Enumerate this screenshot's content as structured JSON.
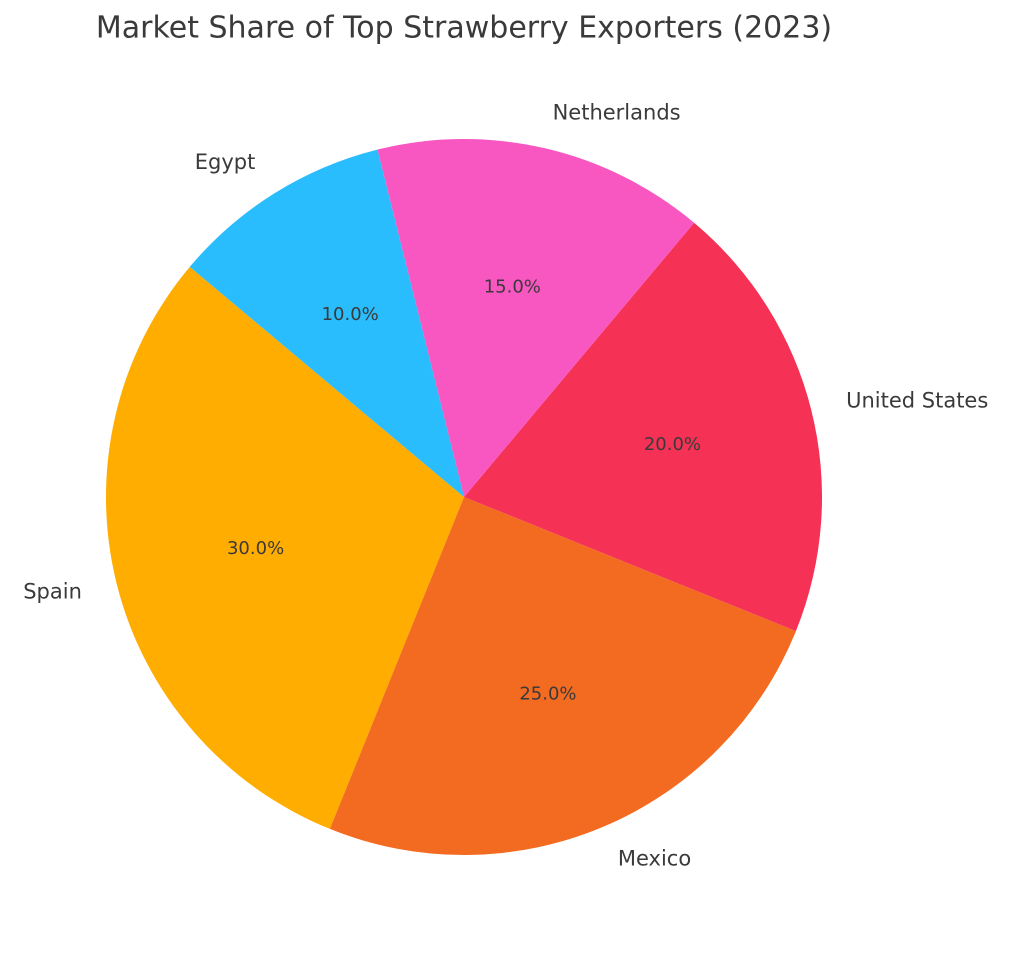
{
  "chart_data": {
    "type": "pie",
    "title": "Market Share of Top Strawberry Exporters (2023)",
    "categories": [
      "Spain",
      "Mexico",
      "United States",
      "Netherlands",
      "Egypt"
    ],
    "values": [
      30,
      25,
      20,
      15,
      10
    ],
    "value_labels": [
      "30.0%",
      "25.0%",
      "20.0%",
      "15.0%",
      "10.0%"
    ],
    "colors": [
      "#ffad00",
      "#f26b21",
      "#f53255",
      "#f857c1",
      "#29bdfd"
    ]
  }
}
